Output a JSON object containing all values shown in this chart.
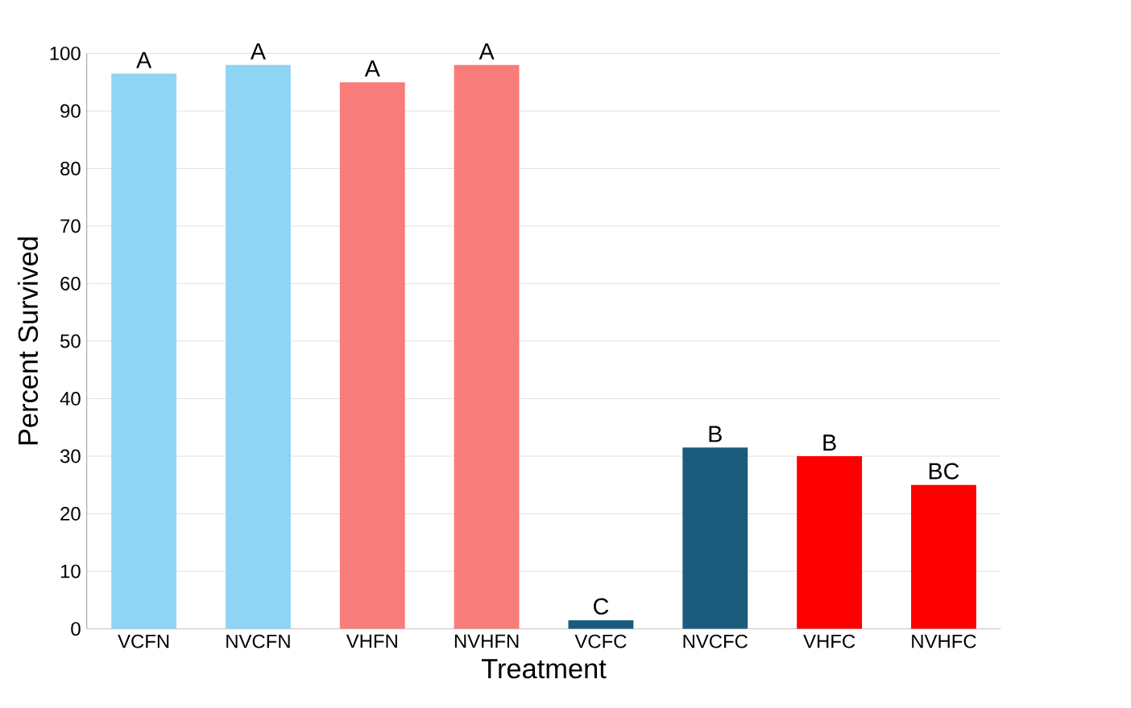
{
  "chart_data": {
    "type": "bar",
    "xlabel": "Treatment",
    "ylabel": "Percent Survived",
    "categories": [
      "VCFN",
      "NVCFN",
      "VHFN",
      "NVHFN",
      "VCFC",
      "NVCFC",
      "VHFC",
      "NVHFC"
    ],
    "values": [
      96.5,
      98,
      95,
      98,
      1.5,
      31.5,
      30,
      25
    ],
    "colors": [
      "#8fd4f2",
      "#8fd4f2",
      "#f87c79",
      "#f87c79",
      "#1b5b7c",
      "#1b5b7c",
      "#fe0000",
      "#fe0000"
    ],
    "ylim": [
      0,
      100
    ],
    "yticks": [
      0,
      10,
      20,
      30,
      40,
      50,
      60,
      70,
      80,
      90,
      100
    ],
    "grid": "y",
    "annotations": [
      {
        "text": "A",
        "x": "VCFN",
        "y": 96.5
      },
      {
        "text": "A",
        "x": "NVCFN",
        "y": 98
      },
      {
        "text": "A",
        "x": "VHFN",
        "y": 95
      },
      {
        "text": "A",
        "x": "NVHFN",
        "y": 98
      },
      {
        "text": "C",
        "x": "VCFC",
        "y": 1.5
      },
      {
        "text": "B",
        "x": "NVCFC",
        "y": 31.5
      },
      {
        "text": "B",
        "x": "VHFC",
        "y": 30
      },
      {
        "text": "BC",
        "x": "NVHFC",
        "y": 25
      }
    ]
  }
}
